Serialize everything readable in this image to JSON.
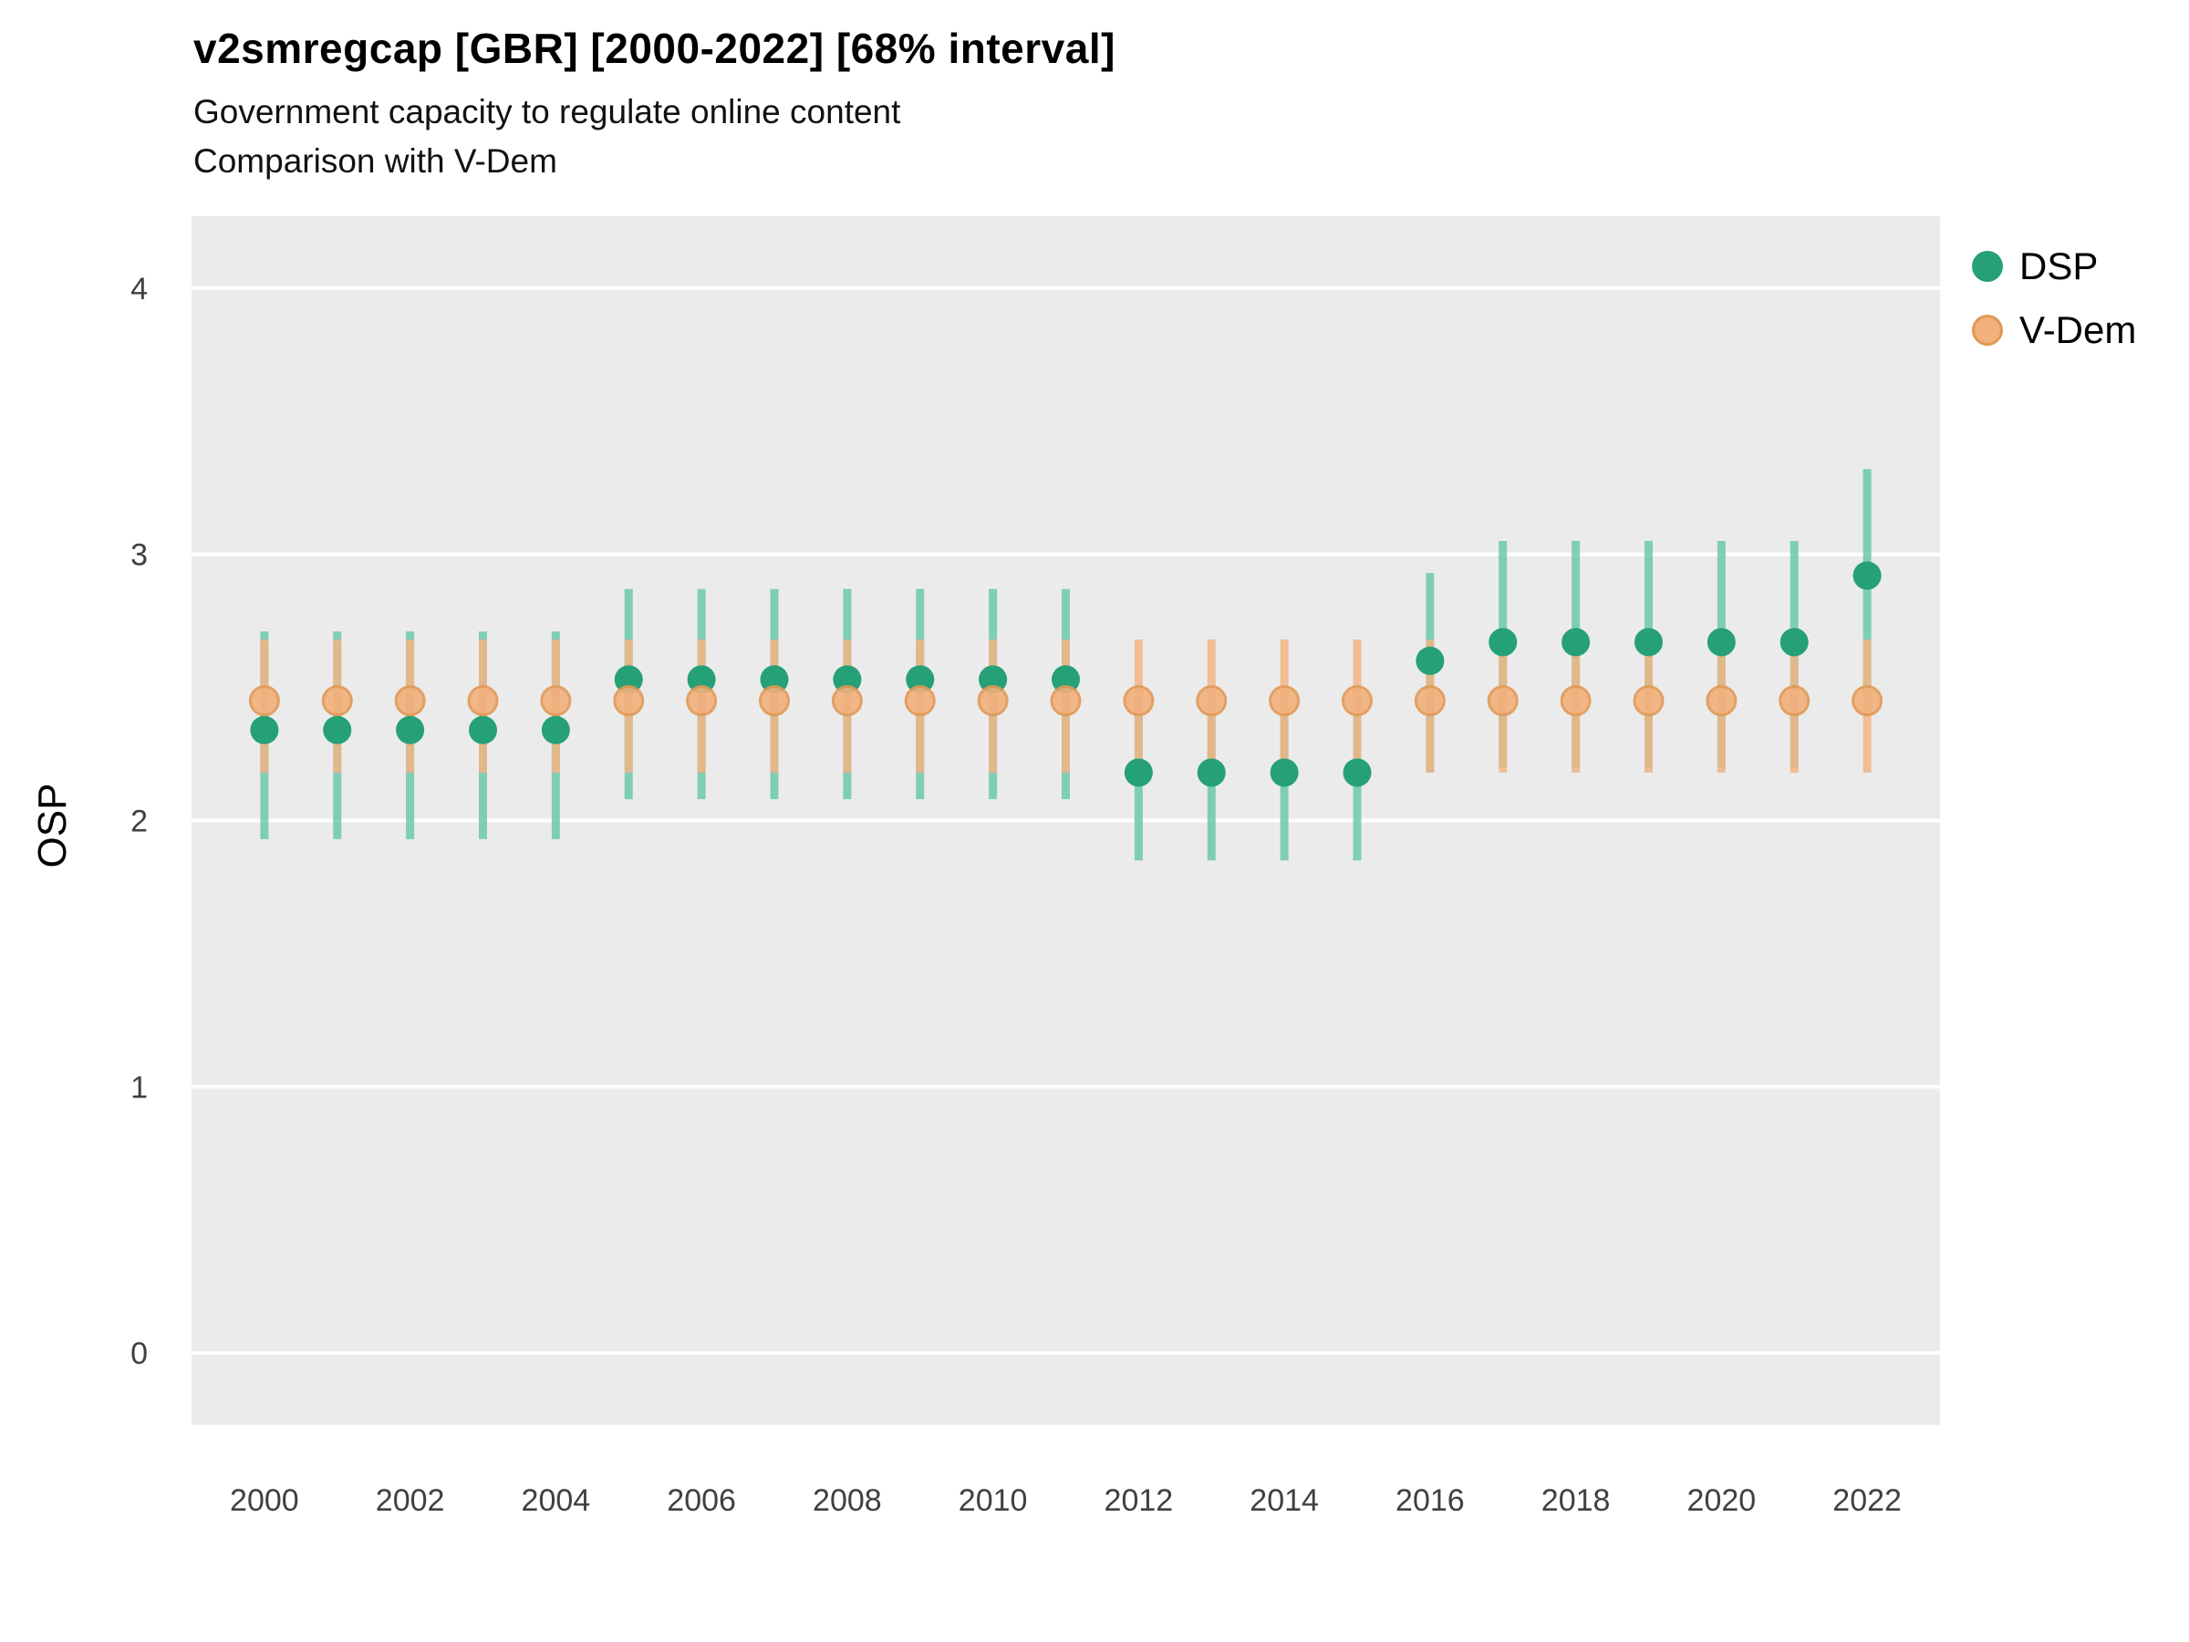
{
  "header": {
    "title": "v2smregcap [GBR] [2000-2022] [68% interval]",
    "subtitle1": "Government capacity to regulate online content",
    "subtitle2": "Comparison with V-Dem"
  },
  "axes": {
    "y_label": "OSP",
    "y_ticks": [
      0,
      1,
      2,
      3,
      4
    ],
    "x_ticks": [
      2000,
      2002,
      2004,
      2006,
      2008,
      2010,
      2012,
      2014,
      2016,
      2018,
      2020,
      2022
    ]
  },
  "colors": {
    "panel_bg": "#EBEBEB",
    "gridline": "#FFFFFF",
    "dsp_green": "#25A077",
    "vdem_orange": "#F2B07C"
  },
  "chart_data": {
    "type": "scatter",
    "title": "v2smregcap [GBR] [2000-2022] [68% interval]",
    "subtitle": "Government capacity to regulate online content — Comparison with V-Dem",
    "xlabel": "",
    "ylabel": "OSP",
    "xlim": [
      1999,
      2023
    ],
    "ylim": [
      -0.27,
      4.27
    ],
    "grid": "major-horizontal",
    "legend_position": "right-top",
    "panel_bg": "#EBEBEB",
    "x": [
      2000,
      2001,
      2002,
      2003,
      2004,
      2005,
      2006,
      2007,
      2008,
      2009,
      2010,
      2011,
      2012,
      2013,
      2014,
      2015,
      2016,
      2017,
      2018,
      2019,
      2020,
      2021,
      2022
    ],
    "series": [
      {
        "name": "DSP",
        "color": "#25A077",
        "interval_color": "#6CC9AB",
        "est": [
          2.34,
          2.34,
          2.34,
          2.34,
          2.34,
          2.53,
          2.53,
          2.53,
          2.53,
          2.53,
          2.53,
          2.53,
          2.18,
          2.18,
          2.18,
          2.18,
          2.6,
          2.67,
          2.67,
          2.67,
          2.67,
          2.67,
          2.92
        ],
        "lo": [
          1.93,
          1.93,
          1.93,
          1.93,
          1.93,
          2.08,
          2.08,
          2.08,
          2.08,
          2.08,
          2.08,
          2.08,
          1.85,
          1.85,
          1.85,
          1.85,
          2.18,
          2.2,
          2.2,
          2.2,
          2.2,
          2.2,
          2.46
        ],
        "hi": [
          2.71,
          2.71,
          2.71,
          2.71,
          2.71,
          2.87,
          2.87,
          2.87,
          2.87,
          2.87,
          2.87,
          2.87,
          2.5,
          2.5,
          2.5,
          2.5,
          2.93,
          3.05,
          3.05,
          3.05,
          3.05,
          3.05,
          3.32
        ]
      },
      {
        "name": "V-Dem",
        "color": "#F2B07C",
        "point_stroke": "#E09A56",
        "point_opacity": 0.9,
        "interval_color": "#F3B585",
        "est": [
          2.45,
          2.45,
          2.45,
          2.45,
          2.45,
          2.45,
          2.45,
          2.45,
          2.45,
          2.45,
          2.45,
          2.45,
          2.45,
          2.45,
          2.45,
          2.45,
          2.45,
          2.45,
          2.45,
          2.45,
          2.45,
          2.45,
          2.45
        ],
        "lo": [
          2.18,
          2.18,
          2.18,
          2.18,
          2.18,
          2.18,
          2.18,
          2.18,
          2.18,
          2.18,
          2.18,
          2.18,
          2.18,
          2.18,
          2.18,
          2.18,
          2.18,
          2.18,
          2.18,
          2.18,
          2.18,
          2.18,
          2.18
        ],
        "hi": [
          2.68,
          2.68,
          2.68,
          2.68,
          2.68,
          2.68,
          2.68,
          2.68,
          2.68,
          2.68,
          2.68,
          2.68,
          2.68,
          2.68,
          2.68,
          2.68,
          2.68,
          2.68,
          2.68,
          2.68,
          2.68,
          2.68,
          2.68
        ]
      }
    ]
  }
}
